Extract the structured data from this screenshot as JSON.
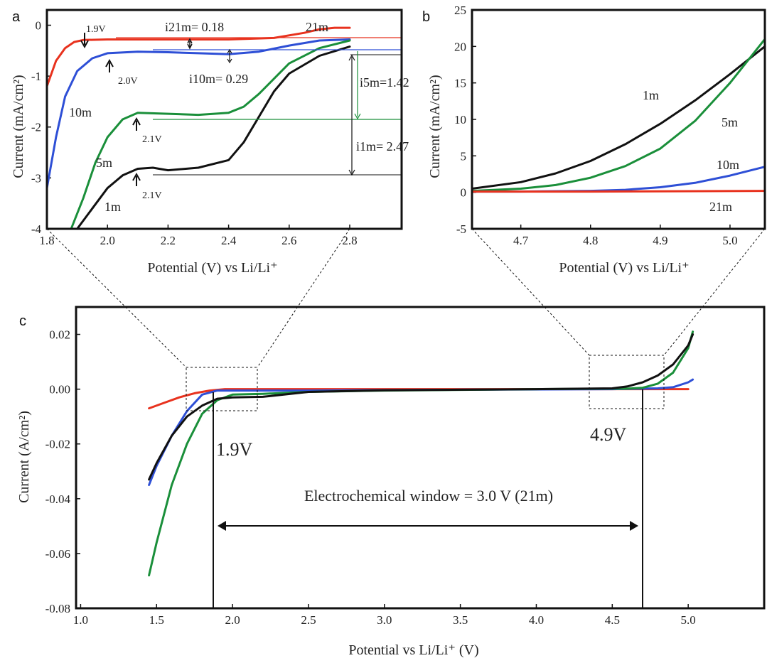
{
  "figure": {
    "colors": {
      "21m": "#e8321e",
      "10m": "#2e4fd6",
      "5m": "#1a8f3a",
      "1m": "#111111",
      "frame": "#111111"
    }
  },
  "chart_data": [
    {
      "panel": "a",
      "type": "line",
      "xlabel": "Potential (V) vs Li/Li⁺",
      "ylabel": "Current (mA/cm²)",
      "xlim": [
        1.8,
        2.8
      ],
      "ylim": [
        -4,
        0.3
      ],
      "xticks": [
        "1.8",
        "2.0",
        "2.2",
        "2.4",
        "2.6",
        "2.8"
      ],
      "yticks": [
        "0",
        "-1",
        "-2",
        "-3",
        "-4"
      ],
      "series": [
        {
          "name": "21m",
          "color": "#e8321e",
          "x": [
            1.8,
            1.83,
            1.86,
            1.89,
            1.92,
            2.0,
            2.2,
            2.4,
            2.55,
            2.65,
            2.7,
            2.75,
            2.8
          ],
          "y": [
            -1.2,
            -0.7,
            -0.45,
            -0.33,
            -0.29,
            -0.28,
            -0.28,
            -0.28,
            -0.25,
            -0.15,
            -0.08,
            -0.05,
            -0.05
          ]
        },
        {
          "name": "10m",
          "color": "#2e4fd6",
          "x": [
            1.8,
            1.83,
            1.86,
            1.9,
            1.95,
            2.0,
            2.1,
            2.2,
            2.3,
            2.4,
            2.5,
            2.6,
            2.7,
            2.8
          ],
          "y": [
            -3.2,
            -2.2,
            -1.4,
            -0.9,
            -0.65,
            -0.55,
            -0.52,
            -0.53,
            -0.55,
            -0.57,
            -0.52,
            -0.4,
            -0.3,
            -0.28
          ]
        },
        {
          "name": "5m",
          "color": "#1a8f3a",
          "x": [
            1.88,
            1.92,
            1.96,
            2.0,
            2.05,
            2.1,
            2.2,
            2.3,
            2.4,
            2.45,
            2.5,
            2.55,
            2.6,
            2.7,
            2.8
          ],
          "y": [
            -4.0,
            -3.4,
            -2.7,
            -2.2,
            -1.85,
            -1.72,
            -1.74,
            -1.76,
            -1.72,
            -1.6,
            -1.35,
            -1.05,
            -0.75,
            -0.45,
            -0.3
          ]
        },
        {
          "name": "1m",
          "color": "#111111",
          "x": [
            1.9,
            1.95,
            2.0,
            2.05,
            2.1,
            2.15,
            2.2,
            2.3,
            2.4,
            2.45,
            2.5,
            2.55,
            2.6,
            2.7,
            2.8
          ],
          "y": [
            -4.0,
            -3.6,
            -3.2,
            -2.95,
            -2.82,
            -2.8,
            -2.85,
            -2.8,
            -2.65,
            -2.3,
            -1.8,
            -1.3,
            -0.95,
            -0.6,
            -0.42
          ]
        }
      ],
      "annotations": {
        "peaks": [
          "1.9V",
          "2.0V",
          "2.1V",
          "2.1V"
        ],
        "currents": [
          "i21m= 0.18",
          "i10m= 0.29",
          "i5m=1.42",
          "i1m= 2.47"
        ],
        "curve_labels": [
          "21m",
          "10m",
          "5m",
          "1m"
        ]
      }
    },
    {
      "panel": "b",
      "type": "line",
      "xlabel": "Potential (V) vs Li/Li⁺",
      "ylabel": "Current (mA/cm²)",
      "xlim": [
        4.63,
        5.05
      ],
      "ylim": [
        -5,
        25
      ],
      "xticks": [
        "4.7",
        "4.8",
        "4.9",
        "5.0"
      ],
      "yticks": [
        "25",
        "20",
        "15",
        "10",
        "5",
        "0",
        "-5"
      ],
      "series": [
        {
          "name": "1m",
          "color": "#111111",
          "x": [
            4.63,
            4.7,
            4.75,
            4.8,
            4.85,
            4.9,
            4.95,
            5.0,
            5.05
          ],
          "y": [
            0.5,
            1.4,
            2.6,
            4.3,
            6.6,
            9.4,
            12.6,
            16.2,
            20.0
          ]
        },
        {
          "name": "5m",
          "color": "#1a8f3a",
          "x": [
            4.63,
            4.7,
            4.75,
            4.8,
            4.85,
            4.9,
            4.95,
            5.0,
            5.05
          ],
          "y": [
            0.2,
            0.5,
            1.0,
            2.0,
            3.6,
            6.0,
            9.8,
            15.0,
            21.0
          ]
        },
        {
          "name": "10m",
          "color": "#2e4fd6",
          "x": [
            4.63,
            4.7,
            4.8,
            4.85,
            4.9,
            4.95,
            5.0,
            5.05
          ],
          "y": [
            0.1,
            0.1,
            0.2,
            0.35,
            0.7,
            1.3,
            2.3,
            3.5
          ]
        },
        {
          "name": "21m",
          "color": "#e8321e",
          "x": [
            4.63,
            4.8,
            5.05
          ],
          "y": [
            0.1,
            0.1,
            0.2
          ]
        }
      ],
      "annotations": {
        "curve_labels": [
          "1m",
          "5m",
          "10m",
          "21m"
        ]
      }
    },
    {
      "panel": "c",
      "type": "line",
      "xlabel": "Potential vs Li/Li⁺ (V)",
      "ylabel": "Current (A/cm²)",
      "xlim": [
        0.97,
        5.5
      ],
      "ylim": [
        -0.08,
        0.03
      ],
      "xticks": [
        "1.0",
        "1.5",
        "2.0",
        "2.5",
        "3.0",
        "3.5",
        "4.0",
        "4.5",
        "5.0"
      ],
      "yticks": [
        "0.02",
        "0.00",
        "-0.02",
        "-0.04",
        "-0.06",
        "-0.08"
      ],
      "series": [
        {
          "name": "21m",
          "color": "#e8321e",
          "x": [
            1.45,
            1.55,
            1.65,
            1.75,
            1.85,
            1.95,
            2.5,
            3.5,
            4.5,
            5.0
          ],
          "y": [
            -0.007,
            -0.005,
            -0.003,
            -0.0015,
            -0.0005,
            0.0,
            0.0,
            0.0,
            0.0,
            0.0
          ]
        },
        {
          "name": "10m",
          "color": "#2e4fd6",
          "x": [
            1.45,
            1.5,
            1.6,
            1.7,
            1.8,
            1.9,
            2.0,
            2.5,
            3.5,
            4.5,
            4.8,
            4.9,
            5.0,
            5.03
          ],
          "y": [
            -0.035,
            -0.028,
            -0.017,
            -0.008,
            -0.002,
            -0.0005,
            -0.0005,
            -0.0005,
            -0.0002,
            0.0,
            0.0003,
            0.0007,
            0.0025,
            0.0035
          ]
        },
        {
          "name": "5m",
          "color": "#1a8f3a",
          "x": [
            1.45,
            1.5,
            1.6,
            1.7,
            1.8,
            1.9,
            2.0,
            2.2,
            2.5,
            3.0,
            4.0,
            4.6,
            4.7,
            4.8,
            4.9,
            5.0,
            5.03
          ],
          "y": [
            -0.068,
            -0.056,
            -0.035,
            -0.02,
            -0.009,
            -0.004,
            -0.002,
            -0.0017,
            -0.001,
            -0.0005,
            0.0,
            0.0002,
            0.0005,
            0.002,
            0.006,
            0.015,
            0.021
          ]
        },
        {
          "name": "1m",
          "color": "#111111",
          "x": [
            1.45,
            1.5,
            1.6,
            1.7,
            1.8,
            1.9,
            2.0,
            2.2,
            2.5,
            3.0,
            4.0,
            4.5,
            4.6,
            4.7,
            4.8,
            4.9,
            5.0,
            5.03
          ],
          "y": [
            -0.033,
            -0.027,
            -0.017,
            -0.01,
            -0.006,
            -0.0035,
            -0.003,
            -0.0028,
            -0.001,
            -0.0004,
            0.0,
            0.0003,
            0.001,
            0.0025,
            0.005,
            0.009,
            0.016,
            0.02
          ]
        }
      ],
      "annotations": {
        "limits": [
          "1.9V",
          "4.9V"
        ],
        "window": "Electrochemical window = 3.0 V (21m)"
      }
    }
  ]
}
